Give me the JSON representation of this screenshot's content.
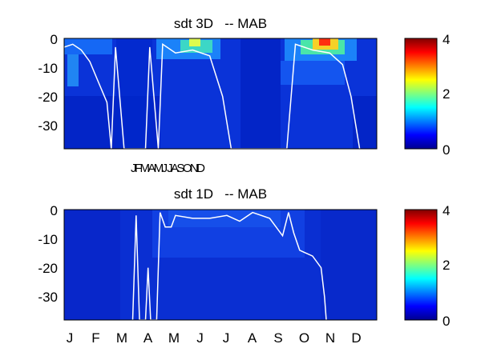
{
  "chart_data": [
    {
      "type": "heatmap",
      "title": "sdt 3D   -- MAB",
      "xlabel": "",
      "ylabel": "",
      "ylim": [
        -38,
        0
      ],
      "yticks": [
        "0",
        "-10",
        "-20",
        "-30"
      ],
      "xtick_labels": [
        "JFMAMJ JASOND"
      ],
      "colorbar": {
        "min": 0,
        "max": 4,
        "ticks": [
          "0",
          "2",
          "4"
        ]
      },
      "overlay_line_color": "#ffffff",
      "overlay_depth_by_day": [
        {
          "day": 0,
          "depth": -3
        },
        {
          "day": 10,
          "depth": -2
        },
        {
          "day": 20,
          "depth": -4
        },
        {
          "day": 30,
          "depth": -8
        },
        {
          "day": 40,
          "depth": -15
        },
        {
          "day": 50,
          "depth": -22
        },
        {
          "day": 55,
          "depth": -38
        },
        {
          "day": 60,
          "depth": -3
        },
        {
          "day": 70,
          "depth": -38
        },
        {
          "day": 95,
          "depth": -38
        },
        {
          "day": 100,
          "depth": -3
        },
        {
          "day": 110,
          "depth": -38
        },
        {
          "day": 115,
          "depth": -2
        },
        {
          "day": 130,
          "depth": -5
        },
        {
          "day": 150,
          "depth": -4
        },
        {
          "day": 170,
          "depth": -6
        },
        {
          "day": 185,
          "depth": -20
        },
        {
          "day": 195,
          "depth": -38
        },
        {
          "day": 260,
          "depth": -38
        },
        {
          "day": 270,
          "depth": -2
        },
        {
          "day": 290,
          "depth": -4
        },
        {
          "day": 310,
          "depth": -5
        },
        {
          "day": 325,
          "depth": -9
        },
        {
          "day": 335,
          "depth": -20
        },
        {
          "day": 345,
          "depth": -38
        }
      ]
    },
    {
      "type": "heatmap",
      "title": "sdt 1D   -- MAB",
      "xlabel": "",
      "ylabel": "",
      "ylim": [
        -38,
        0
      ],
      "yticks": [
        "0",
        "-10",
        "-20",
        "-30"
      ],
      "xtick_labels": [
        "J",
        "F",
        "M",
        "A",
        "M",
        "J",
        "J",
        "A",
        "S",
        "O",
        "N",
        "D"
      ],
      "colorbar": {
        "min": 0,
        "max": 4,
        "ticks": [
          "0",
          "2",
          "4"
        ]
      },
      "overlay_line_color": "#ffffff",
      "overlay_depth_by_day": [
        {
          "day": 80,
          "depth": -38
        },
        {
          "day": 84,
          "depth": -2
        },
        {
          "day": 88,
          "depth": -38
        },
        {
          "day": 95,
          "depth": -38
        },
        {
          "day": 98,
          "depth": -20
        },
        {
          "day": 101,
          "depth": -38
        },
        {
          "day": 108,
          "depth": -38
        },
        {
          "day": 112,
          "depth": -1
        },
        {
          "day": 118,
          "depth": -6
        },
        {
          "day": 125,
          "depth": -6
        },
        {
          "day": 130,
          "depth": -2
        },
        {
          "day": 150,
          "depth": -3
        },
        {
          "day": 170,
          "depth": -3
        },
        {
          "day": 190,
          "depth": -2
        },
        {
          "day": 205,
          "depth": -4
        },
        {
          "day": 220,
          "depth": -1
        },
        {
          "day": 240,
          "depth": -3
        },
        {
          "day": 255,
          "depth": -9
        },
        {
          "day": 262,
          "depth": -1
        },
        {
          "day": 268,
          "depth": -8
        },
        {
          "day": 275,
          "depth": -14
        },
        {
          "day": 290,
          "depth": -16
        },
        {
          "day": 300,
          "depth": -20
        },
        {
          "day": 304,
          "depth": -30
        },
        {
          "day": 306,
          "depth": -38
        }
      ]
    }
  ]
}
